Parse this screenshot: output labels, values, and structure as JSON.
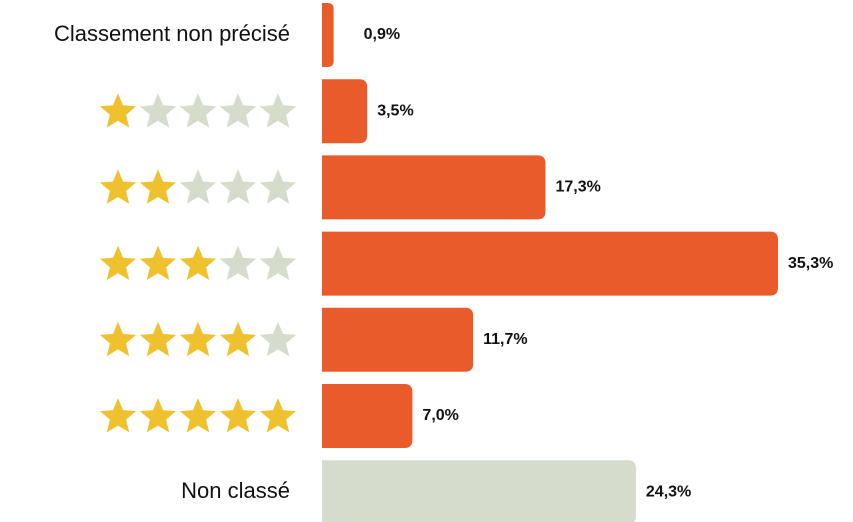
{
  "chart_data": {
    "type": "bar",
    "orientation": "horizontal",
    "categories": [
      "Classement non précisé",
      null,
      null,
      null,
      null,
      null,
      "Non classé"
    ],
    "values": [
      0.9,
      3.5,
      17.3,
      35.3,
      11.7,
      7.0,
      24.3
    ],
    "value_labels": [
      "0,9%",
      "3,5%",
      "17,3%",
      "35,3%",
      "11,7%",
      "7,0%",
      "24,3%"
    ],
    "colors": [
      "#e95b2b",
      "#e95b2b",
      "#e95b2b",
      "#e95b2b",
      "#e95b2b",
      "#e95b2b",
      "#d5dccb"
    ]
  }
}
